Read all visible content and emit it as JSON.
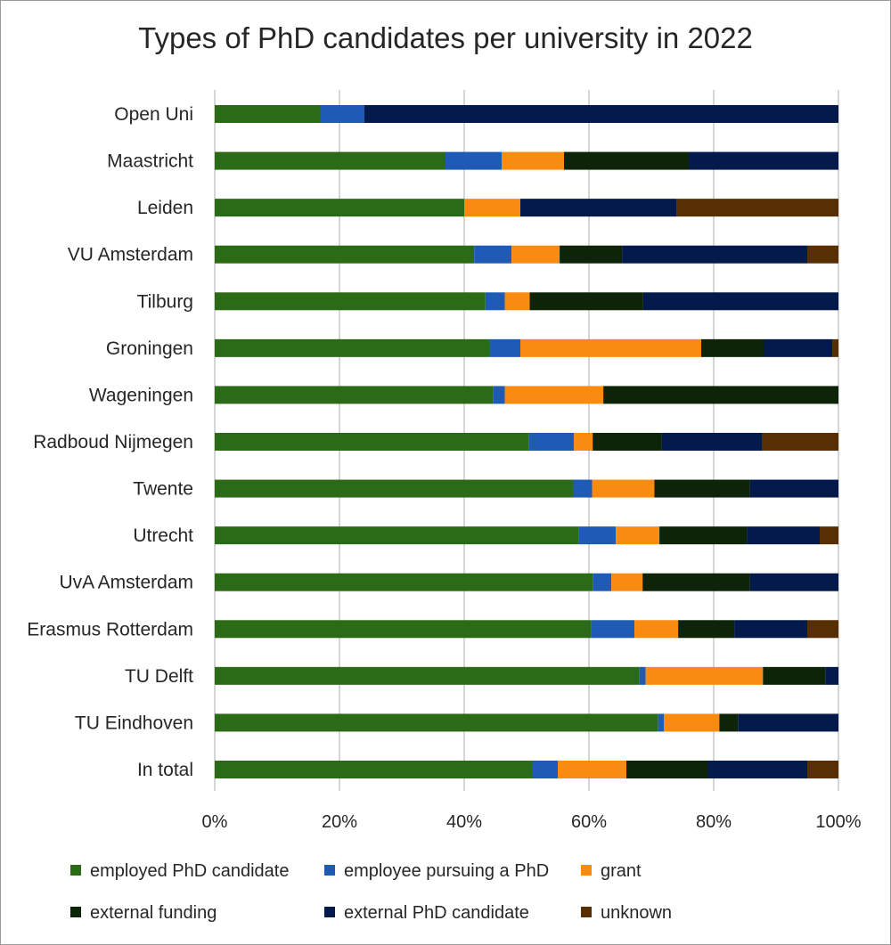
{
  "chart_data": {
    "type": "bar",
    "orientation": "horizontal",
    "stacked": "percent",
    "title": "Types of PhD candidates per university in 2022",
    "categories": [
      "Open Uni",
      "Maastricht",
      "Leiden",
      "VU Amsterdam",
      "Tilburg",
      "Groningen",
      "Wageningen",
      "Radboud Nijmegen",
      "Twente",
      "Utrecht",
      "UvA Amsterdam",
      "Erasmus Rotterdam",
      "TU Delft",
      "TU Eindhoven",
      "In total"
    ],
    "series": [
      {
        "name": "employed PhD candidate",
        "color": "#2c6b16",
        "values": [
          17.0,
          37.0,
          40.0,
          41.6,
          43.4,
          44.0,
          44.6,
          50.4,
          57.5,
          58.3,
          60.6,
          60.3,
          68.1,
          71.1,
          51.0
        ]
      },
      {
        "name": "employee pursuing a PhD",
        "color": "#1f5bb5",
        "values": [
          7.0,
          9.0,
          0.0,
          6.0,
          3.1,
          5.0,
          1.9,
          7.2,
          3.0,
          6.0,
          3.0,
          7.0,
          1.0,
          0.9,
          4.0
        ]
      },
      {
        "name": "grant",
        "color": "#f98b10",
        "values": [
          0.0,
          10.0,
          9.0,
          7.7,
          4.0,
          29.0,
          15.8,
          3.0,
          10.0,
          7.0,
          5.0,
          7.0,
          18.8,
          8.9,
          11.0
        ]
      },
      {
        "name": "external funding",
        "color": "#0e2409",
        "values": [
          0.0,
          20.0,
          0.0,
          10.0,
          18.2,
          10.0,
          37.7,
          11.1,
          15.3,
          14.0,
          17.2,
          9.0,
          10.0,
          3.0,
          13.0
        ]
      },
      {
        "name": "external PhD candidate",
        "color": "#031a4a",
        "values": [
          76.0,
          24.0,
          25.1,
          29.7,
          31.3,
          11.0,
          0.0,
          16.1,
          14.2,
          11.7,
          14.2,
          11.7,
          2.1,
          16.1,
          16.0
        ]
      },
      {
        "name": "unknown",
        "color": "#572f03",
        "values": [
          0.0,
          0.0,
          25.9,
          5.0,
          0.0,
          1.0,
          0.0,
          12.2,
          0.0,
          3.0,
          0.0,
          5.0,
          0.0,
          0.0,
          5.0
        ]
      }
    ],
    "xlim": [
      0,
      100
    ],
    "xticks": [
      "0%",
      "20%",
      "40%",
      "60%",
      "80%",
      "100%"
    ],
    "grid": true,
    "legend": "bottom"
  }
}
